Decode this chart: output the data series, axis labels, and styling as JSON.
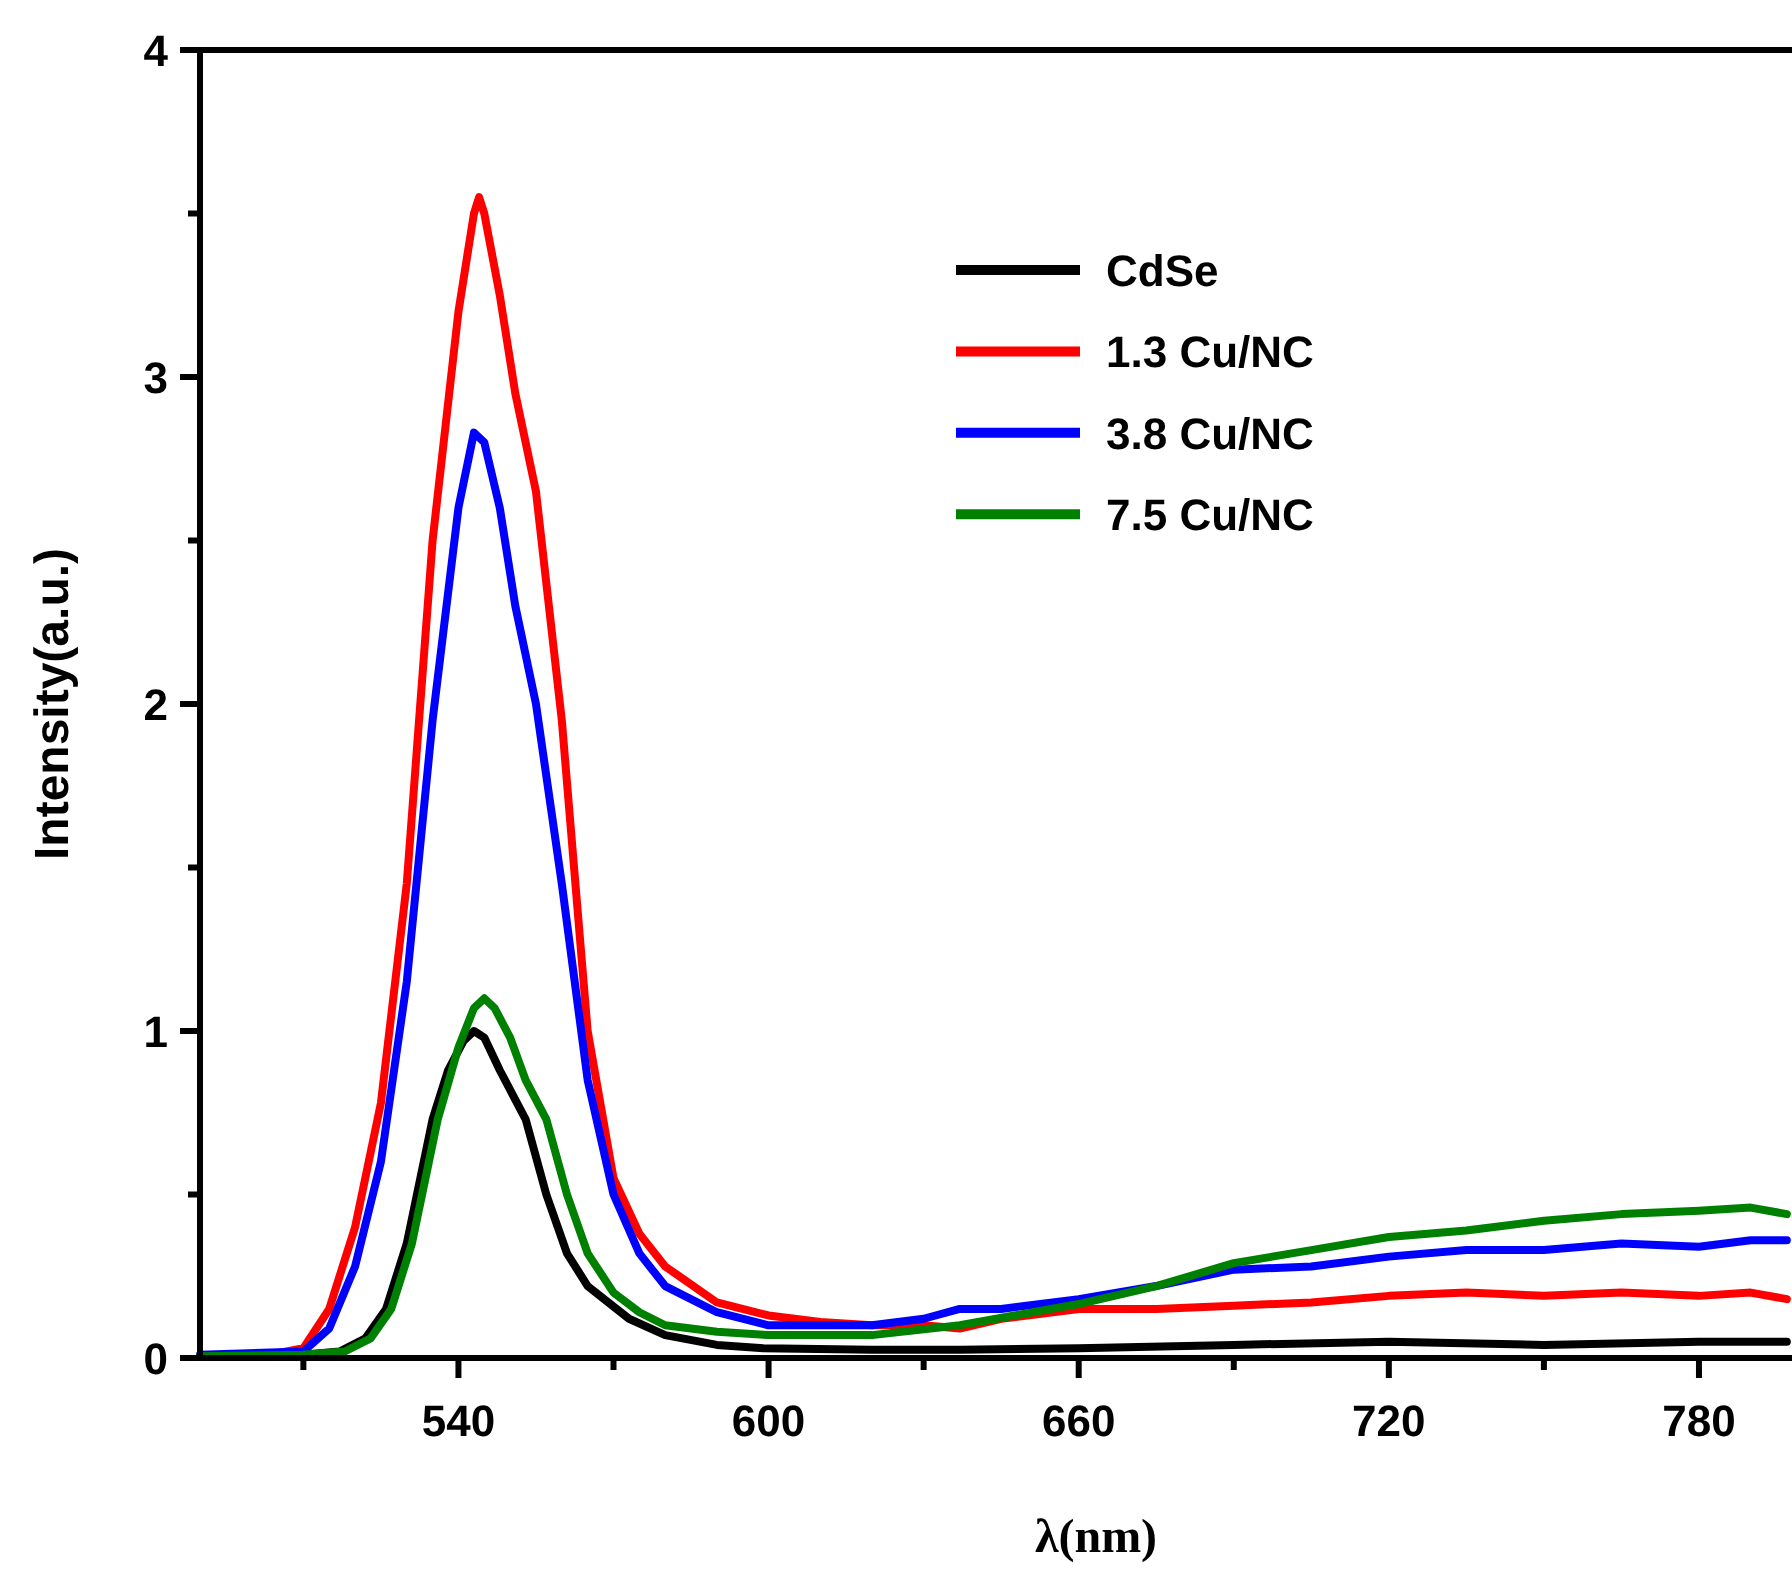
{
  "chart_data": {
    "type": "line",
    "xlabel": "λ(nm)",
    "ylabel": "Intensity(a.u.)",
    "xlim": [
      490,
      798
    ],
    "ylim": [
      0,
      4
    ],
    "xticks": [
      {
        "value": 510,
        "label": null
      },
      540,
      {
        "value": 570,
        "label": null
      },
      600,
      {
        "value": 630,
        "label": null
      },
      660,
      {
        "value": 690,
        "label": null
      },
      720,
      {
        "value": 750,
        "label": null
      },
      780
    ],
    "yticks": [
      0,
      {
        "value": 0.5,
        "label": null
      },
      1,
      {
        "value": 1.5,
        "label": null
      },
      2,
      {
        "value": 2.5,
        "label": null
      },
      3,
      {
        "value": 3.5,
        "label": null
      },
      4
    ],
    "grid": false,
    "legend": "top right",
    "line_style": "solid",
    "marker": "none",
    "series": [
      {
        "name": "CdSe",
        "color": "#000000",
        "x": [
          490,
          510,
          517,
          522,
          526,
          530,
          535,
          538,
          541,
          543,
          545,
          548,
          553,
          557,
          561,
          565,
          573,
          580,
          590,
          599,
          620,
          637,
          660,
          690,
          720,
          750,
          780,
          797
        ],
        "values": [
          0.005,
          0.01,
          0.02,
          0.06,
          0.15,
          0.35,
          0.73,
          0.88,
          0.97,
          1.0,
          0.98,
          0.88,
          0.73,
          0.5,
          0.32,
          0.22,
          0.12,
          0.07,
          0.04,
          0.03,
          0.025,
          0.025,
          0.03,
          0.04,
          0.05,
          0.04,
          0.05,
          0.05
        ]
      },
      {
        "name": "1.3 Cu/NC",
        "color": "#ff0000",
        "x": [
          505,
          510,
          515,
          520,
          525,
          530,
          535,
          540,
          543,
          544,
          545,
          548,
          551,
          555,
          560,
          565,
          570,
          575,
          580,
          590,
          600,
          610,
          620,
          630,
          637,
          645,
          660,
          675,
          690,
          705,
          720,
          735,
          750,
          765,
          780,
          790,
          797
        ],
        "values": [
          0.015,
          0.03,
          0.15,
          0.4,
          0.78,
          1.45,
          2.5,
          3.2,
          3.5,
          3.55,
          3.5,
          3.25,
          2.95,
          2.65,
          1.95,
          1.0,
          0.55,
          0.38,
          0.28,
          0.17,
          0.13,
          0.11,
          0.1,
          0.1,
          0.09,
          0.12,
          0.15,
          0.15,
          0.16,
          0.17,
          0.19,
          0.2,
          0.19,
          0.2,
          0.19,
          0.2,
          0.18
        ]
      },
      {
        "name": "3.8 Cu/NC",
        "color": "#0000ff",
        "x": [
          490,
          510,
          515,
          520,
          525,
          530,
          535,
          540,
          543,
          545,
          548,
          551,
          555,
          560,
          565,
          570,
          575,
          580,
          590,
          600,
          610,
          620,
          630,
          637,
          645,
          660,
          675,
          690,
          705,
          720,
          735,
          750,
          765,
          780,
          790,
          797
        ],
        "values": [
          0.01,
          0.02,
          0.09,
          0.28,
          0.6,
          1.15,
          1.95,
          2.6,
          2.83,
          2.8,
          2.6,
          2.3,
          2.0,
          1.45,
          0.85,
          0.5,
          0.32,
          0.22,
          0.14,
          0.1,
          0.1,
          0.1,
          0.12,
          0.15,
          0.15,
          0.18,
          0.22,
          0.27,
          0.28,
          0.31,
          0.33,
          0.33,
          0.35,
          0.34,
          0.36,
          0.36
        ]
      },
      {
        "name": "7.5 Cu/NC",
        "color": "#008000",
        "x": [
          490,
          510,
          518,
          523,
          527,
          531,
          536,
          540,
          543,
          545,
          547,
          550,
          553,
          557,
          561,
          565,
          570,
          575,
          580,
          590,
          600,
          620,
          637,
          660,
          675,
          690,
          705,
          720,
          735,
          750,
          765,
          780,
          790,
          797
        ],
        "values": [
          0.005,
          0.01,
          0.02,
          0.06,
          0.15,
          0.35,
          0.73,
          0.95,
          1.07,
          1.1,
          1.07,
          0.98,
          0.85,
          0.73,
          0.5,
          0.32,
          0.2,
          0.14,
          0.1,
          0.08,
          0.07,
          0.07,
          0.1,
          0.165,
          0.22,
          0.29,
          0.33,
          0.37,
          0.39,
          0.42,
          0.44,
          0.45,
          0.46,
          0.44
        ]
      }
    ]
  }
}
